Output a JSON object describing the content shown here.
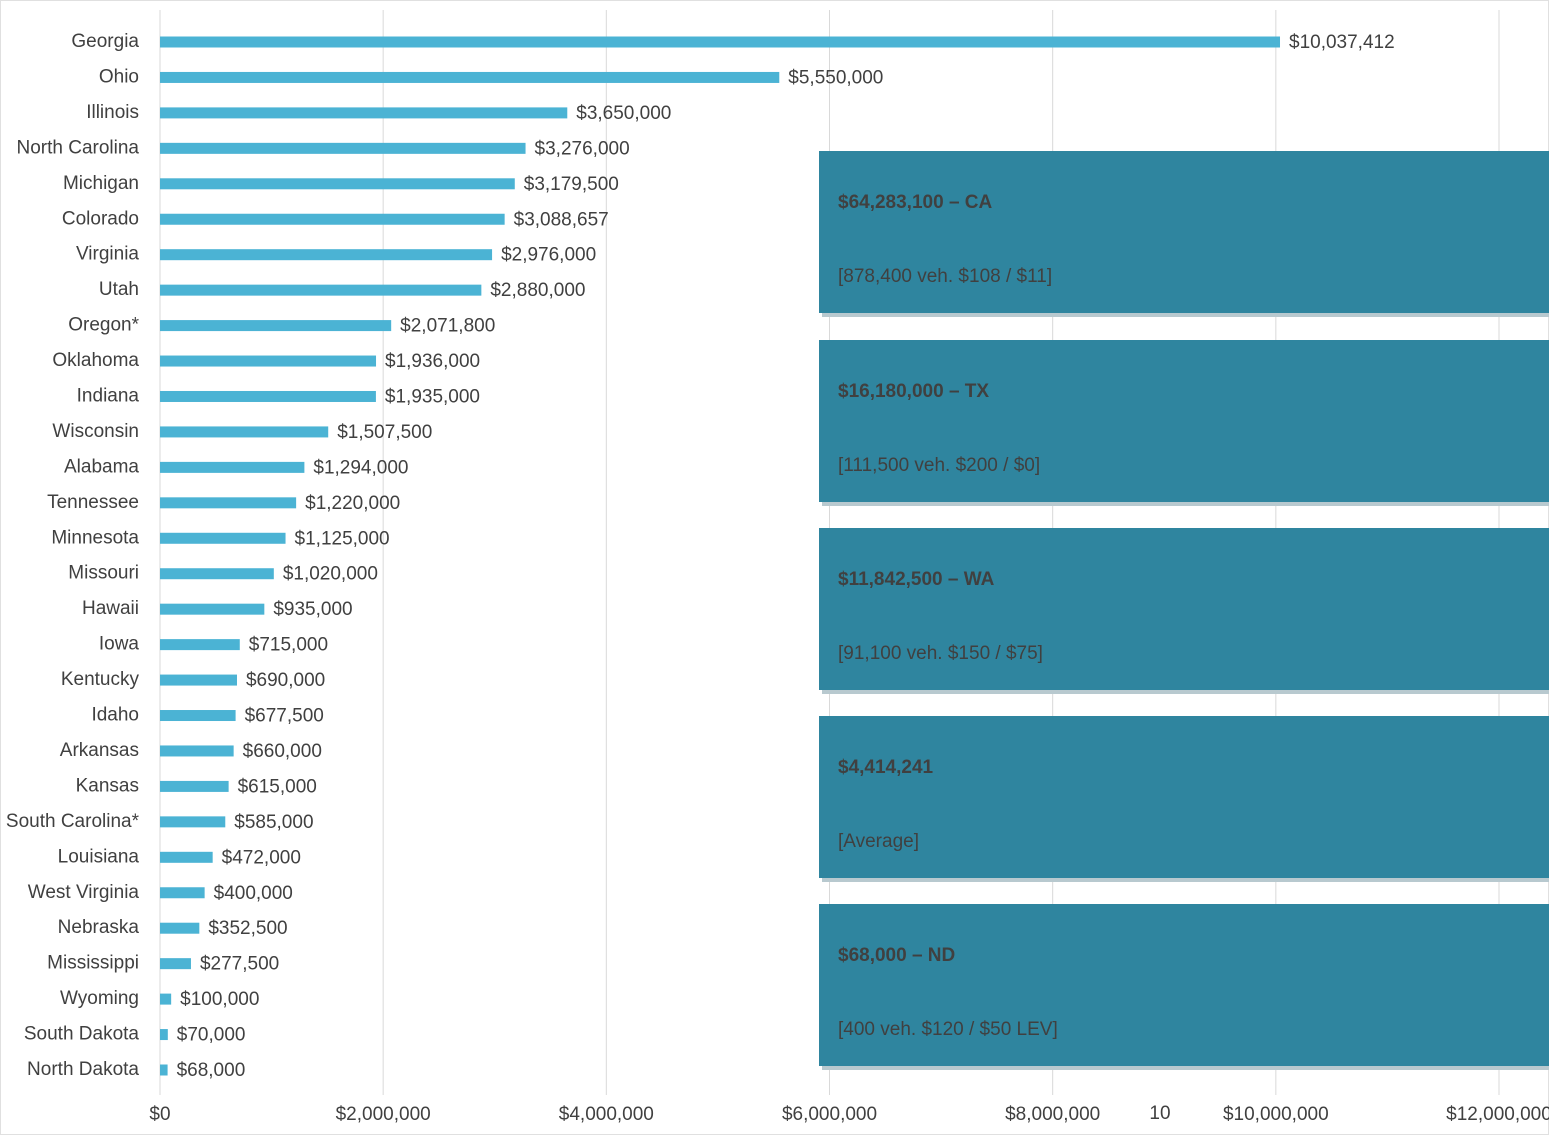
{
  "chart_data": {
    "type": "bar",
    "orientation": "horizontal",
    "color": "#4bb3d4",
    "grid": true,
    "categories": [
      "Georgia",
      "Ohio",
      "Illinois",
      "North Carolina",
      "Michigan",
      "Colorado",
      "Virginia",
      "Utah",
      "Oregon*",
      "Oklahoma",
      "Indiana",
      "Wisconsin",
      "Alabama",
      "Tennessee",
      "Minnesota",
      "Missouri",
      "Hawaii",
      "Iowa",
      "Kentucky",
      "Idaho",
      "Arkansas",
      "Kansas",
      "South Carolina*",
      "Louisiana",
      "West Virginia",
      "Nebraska",
      "Mississippi",
      "Wyoming",
      "South Dakota",
      "North Dakota"
    ],
    "values": [
      10037412,
      5550000,
      3650000,
      3276000,
      3179500,
      3088657,
      2976000,
      2880000,
      2071800,
      1936000,
      1935000,
      1507500,
      1294000,
      1220000,
      1125000,
      1020000,
      935000,
      715000,
      690000,
      677500,
      660000,
      615000,
      585000,
      472000,
      400000,
      352500,
      277500,
      100000,
      70000,
      68000
    ],
    "value_labels": [
      "$10,037,412",
      "$5,550,000",
      "$3,650,000",
      "$3,276,000",
      "$3,179,500",
      "$3,088,657",
      "$2,976,000",
      "$2,880,000",
      "$2,071,800",
      "$1,936,000",
      "$1,935,000",
      "$1,507,500",
      "$1,294,000",
      "$1,220,000",
      "$1,125,000",
      "$1,020,000",
      "$935,000",
      "$715,000",
      "$690,000",
      "$677,500",
      "$660,000",
      "$615,000",
      "$585,000",
      "$472,000",
      "$400,000",
      "$352,500",
      "$277,500",
      "$100,000",
      "$70,000",
      "$68,000"
    ],
    "xlim": [
      0,
      12000000
    ],
    "xticks": [
      {
        "value": 0,
        "label": "$0"
      },
      {
        "value": 2000000,
        "label": "$2,000,000"
      },
      {
        "value": 4000000,
        "label": "$4,000,000"
      },
      {
        "value": 6000000,
        "label": "$6,000,000"
      },
      {
        "value": 8000000,
        "label": "$8,000,000"
      },
      {
        "value": 10000000,
        "label": "$10,000,000"
      },
      {
        "value": 12000000,
        "label": "$12,000,000"
      }
    ],
    "callouts": [
      {
        "title": "$64,283,100 – CA",
        "subtitle": "[878,400 veh. $108 / $11]"
      },
      {
        "title": "$16,180,000 – TX",
        "subtitle": "[111,500 veh. $200 / $0]"
      },
      {
        "title": "$11,842,500 – WA",
        "subtitle": "[91,100 veh. $150 / $75]"
      },
      {
        "title": "$4,414,241",
        "subtitle": "[Average]"
      },
      {
        "title": "$68,000 – ND",
        "subtitle": "[400 veh. $120 / $50 LEV]"
      }
    ],
    "callout_color": "#2f859f"
  },
  "page_number": "10"
}
